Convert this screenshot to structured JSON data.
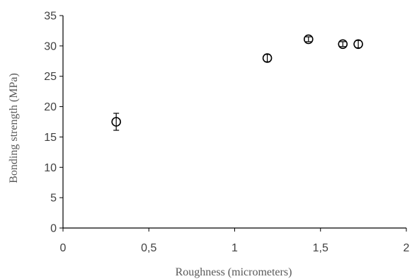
{
  "chart_data": {
    "type": "scatter",
    "xlabel": "Roughness (micrometers)",
    "ylabel": "Bonding strength (MPa)",
    "xlim": [
      0,
      2
    ],
    "ylim": [
      0,
      35
    ],
    "x_ticks": [
      0,
      0.5,
      1,
      1.5,
      2
    ],
    "x_tick_labels": [
      "0",
      "0,5",
      "1",
      "1,5",
      "2"
    ],
    "y_ticks": [
      0,
      5,
      10,
      15,
      20,
      25,
      30,
      35
    ],
    "y_tick_labels": [
      "0",
      "5",
      "10",
      "15",
      "20",
      "25",
      "30",
      "35"
    ],
    "grid": false,
    "legend": "none",
    "marker": "open-circle",
    "series": [
      {
        "points": [
          {
            "x": 0.31,
            "y": 17.5,
            "err": 1.4
          },
          {
            "x": 1.19,
            "y": 28.0,
            "err": 0.6
          },
          {
            "x": 1.43,
            "y": 31.1,
            "err": 0.4
          },
          {
            "x": 1.63,
            "y": 30.3,
            "err": 0.4
          },
          {
            "x": 1.72,
            "y": 30.3,
            "err": 0.6
          }
        ]
      }
    ]
  }
}
